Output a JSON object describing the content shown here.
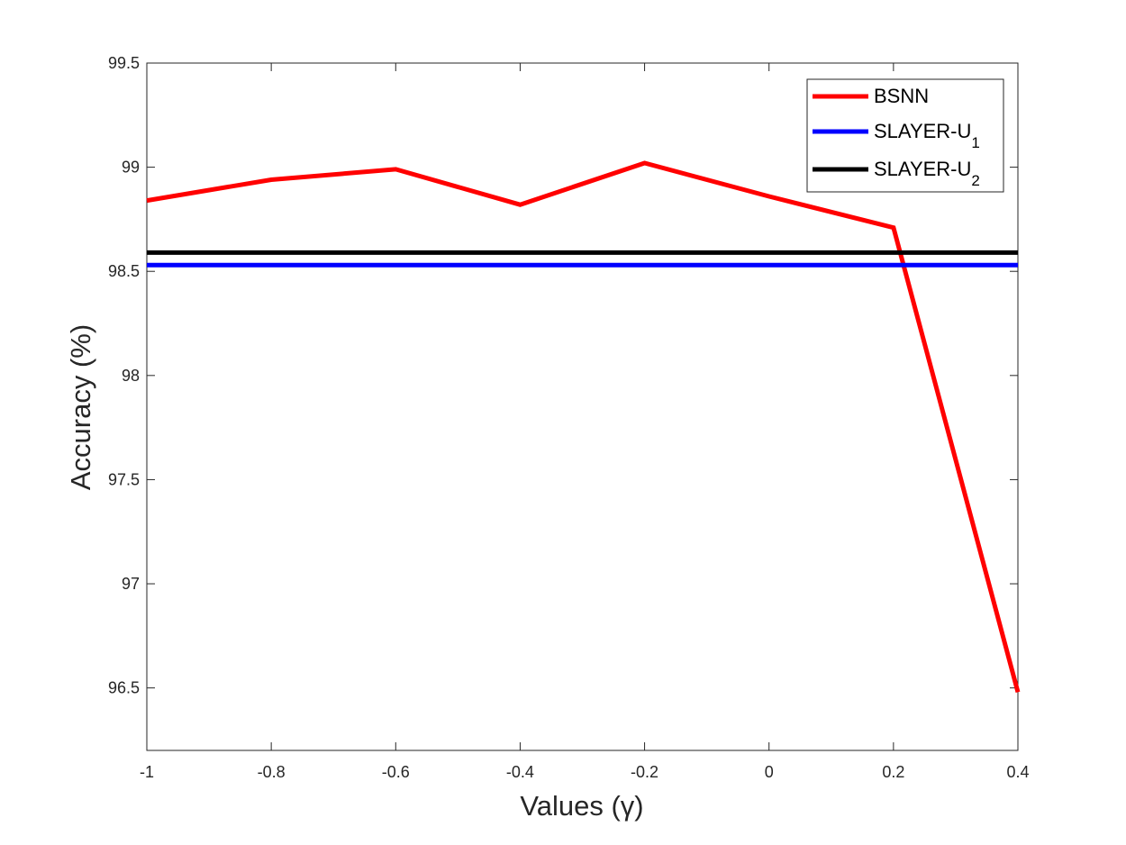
{
  "chart_data": {
    "type": "line",
    "xlabel": "Values (γ)",
    "ylabel": "Accuracy (%)",
    "xlim": [
      -1,
      0.4
    ],
    "ylim": [
      96.2,
      99.5
    ],
    "xticks": [
      -1,
      -0.8,
      -0.6,
      -0.4,
      -0.2,
      0,
      0.2,
      0.4
    ],
    "xtick_labels": [
      "-1",
      "-0.8",
      "-0.6",
      "-0.4",
      "-0.2",
      "0",
      "0.2",
      "0.4"
    ],
    "yticks": [
      96.5,
      97,
      97.5,
      98,
      98.5,
      99,
      99.5
    ],
    "ytick_labels": [
      "96.5",
      "97",
      "97.5",
      "98",
      "98.5",
      "99",
      "99.5"
    ],
    "grid": false,
    "legend_position": "top-right",
    "series": [
      {
        "name": "BSNN",
        "color": "#ff0000",
        "x": [
          -1,
          -0.8,
          -0.6,
          -0.4,
          -0.2,
          0,
          0.2,
          0.4
        ],
        "y": [
          98.84,
          98.94,
          98.99,
          98.82,
          99.02,
          98.86,
          98.71,
          96.48
        ]
      },
      {
        "name": "SLAYER-U",
        "name_sub": "1",
        "color": "#0000ff",
        "x": [
          -1,
          0.4
        ],
        "y": [
          98.53,
          98.53
        ]
      },
      {
        "name": "SLAYER-U",
        "name_sub": "2",
        "color": "#000000",
        "x": [
          -1,
          0.4
        ],
        "y": [
          98.59,
          98.59
        ]
      }
    ]
  }
}
